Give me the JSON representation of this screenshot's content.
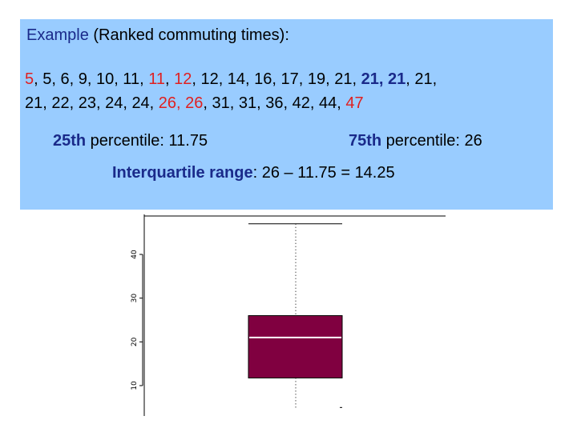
{
  "heading": {
    "lead": "Example",
    "rest": " (Ranked commuting times):"
  },
  "data_list": {
    "line1": [
      {
        "text": "5",
        "color": "red"
      },
      {
        "text": ", 5, 6, 9, 10, 11, "
      },
      {
        "text": "11",
        "color": "red"
      },
      {
        "text": ", "
      },
      {
        "text": "12",
        "color": "red"
      },
      {
        "text": ", 12, 14, 16, 17, 19, 21, "
      },
      {
        "text": "21, 21",
        "color": "blue"
      },
      {
        "text": ", 21,"
      }
    ],
    "line2": [
      {
        "text": "21, 22, 23, 24, 24, "
      },
      {
        "text": "26, 26",
        "color": "red"
      },
      {
        "text": ", 31, 31, 36, 42, 44, "
      },
      {
        "text": "47",
        "color": "red"
      }
    ]
  },
  "percentiles": {
    "p25_strong": "25th",
    "p25_rest": " percentile: 11.75",
    "p75_strong": "75th",
    "p75_rest": " percentile: 26"
  },
  "iqr": {
    "strong": "Interquartile range",
    "rest": ": 26 – 11.75 = 14.25"
  },
  "colors": {
    "box_fill": "#800040",
    "median": "#ffffff",
    "info_bg": "#99ccff",
    "accent_blue": "#1a2a8a",
    "accent_red": "#e02020"
  },
  "chart_data": {
    "type": "box",
    "min": 5,
    "q1": 11.75,
    "median": 21,
    "q3": 26,
    "max": 47,
    "y_ticks": [
      10,
      20,
      30,
      40
    ],
    "y_tick_labels": [
      "10",
      "20",
      "30",
      "40"
    ],
    "ylim": [
      5,
      47
    ]
  }
}
